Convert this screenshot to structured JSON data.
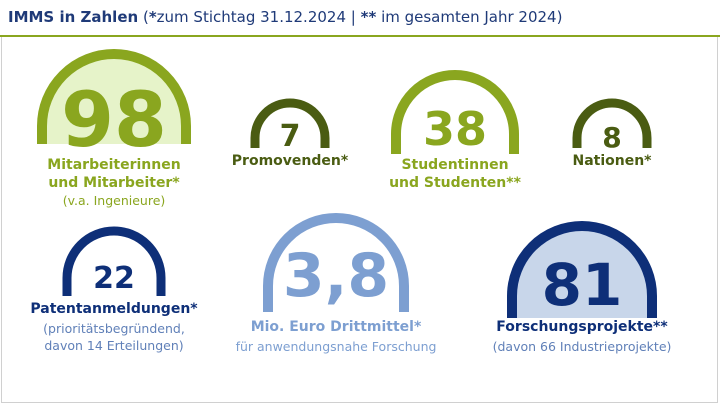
{
  "header": {
    "title": "IMMS in Zahlen",
    "note_open": " (",
    "note_star_mark": "*",
    "note_star_text": "zum Stichtag 31.12.2024 | ",
    "note_dstar_mark": "**",
    "note_dstar_text": " im gesamten Jahr 2024)"
  },
  "colors": {
    "green": "#8aa61f",
    "dark_green": "#4a5c12",
    "light_green_fill": "#e6f3c9",
    "navy": "#0e2f78",
    "light_blue": "#7d9fd1",
    "light_blue_fill": "#c8d6ea",
    "subtext": "#6080b8"
  },
  "stats": {
    "staff": {
      "value": "98",
      "label_line1": "Mitarbeiterinnen",
      "label_line2": "und Mitarbeiter*",
      "sub": "(v.a. Ingenieure)"
    },
    "phd": {
      "value": "7",
      "label": "Promovenden*"
    },
    "students": {
      "value": "38",
      "label_line1": "Studentinnen",
      "label_line2": "und Studenten**"
    },
    "nations": {
      "value": "8",
      "label": "Nationen*"
    },
    "patents": {
      "value": "22",
      "label": "Patentanmeldungen*",
      "sub_line1": "(prioritätsbegründend,",
      "sub_line2": "davon 14 Erteilungen)"
    },
    "funding": {
      "value": "3,8",
      "label": "Mio. Euro Drittmittel*",
      "sub": "für anwendungsnahe Forschung"
    },
    "projects": {
      "value": "81",
      "label": "Forschungsprojekte**",
      "sub": "(davon 66 Industrieprojekte)"
    }
  }
}
